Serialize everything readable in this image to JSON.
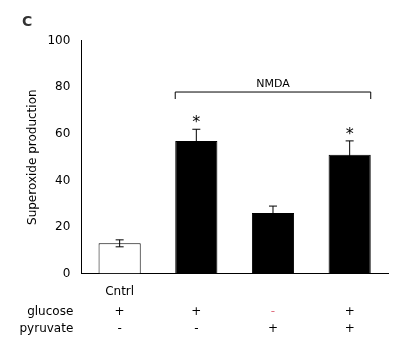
{
  "chart_data": {
    "type": "bar",
    "title": "C",
    "categories": [
      "Cntrl",
      null,
      null,
      null
    ],
    "values": [
      13,
      57,
      26,
      51
    ],
    "errors": [
      1.5,
      5,
      3,
      6
    ],
    "colors": [
      "white",
      "black",
      "black",
      "black"
    ],
    "ylabel": "Superoxide production",
    "ylim": [
      0,
      100
    ],
    "yticks": [
      0,
      20,
      40,
      60,
      80,
      100
    ],
    "grid": false,
    "annotations": [
      {
        "text": "*",
        "x": 1,
        "y": 63
      },
      {
        "text": "*",
        "x": 3,
        "y": 58
      },
      {
        "text": "NMDA",
        "from": 1,
        "to": 3,
        "y": 78,
        "y_end": 75
      }
    ],
    "sign_rows": [
      {
        "name": "glucose",
        "values": [
          "+",
          "+",
          "-",
          "+"
        ],
        "colors": [
          "black",
          "black",
          "#e07080",
          "black"
        ]
      },
      {
        "name": "pyruvate",
        "values": [
          "-",
          "-",
          "+",
          "+"
        ]
      }
    ]
  }
}
